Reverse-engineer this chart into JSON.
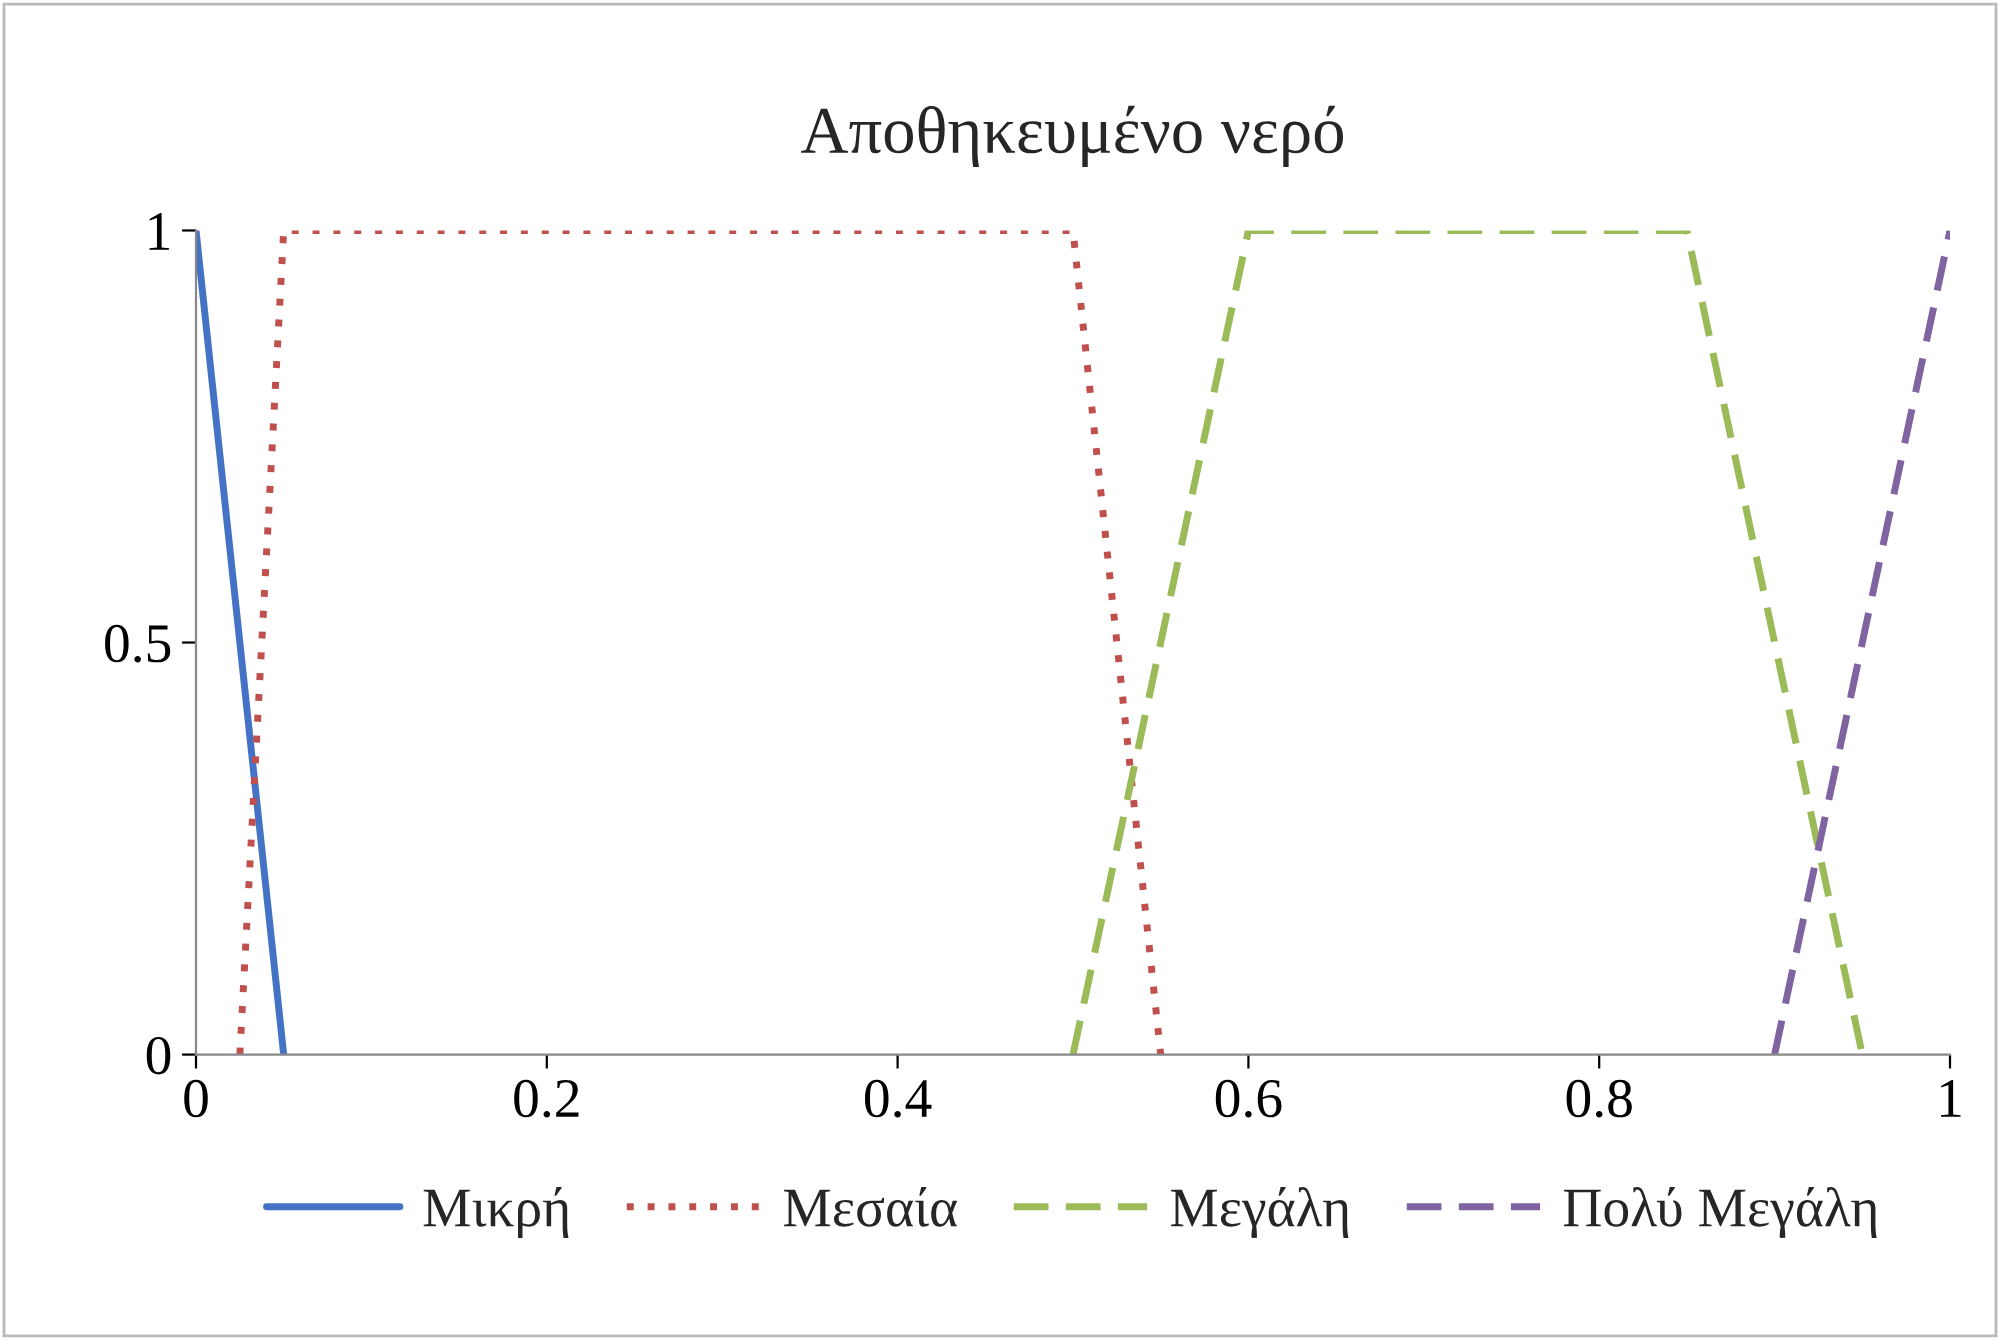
{
  "chart_data": {
    "type": "line",
    "title": "Αποθηκευμένο νερό",
    "series": [
      {
        "name": "Μικρή",
        "color": "#4472c4",
        "line_style": "solid",
        "x": [
          0,
          0.05
        ],
        "values": [
          1,
          0
        ]
      },
      {
        "name": "Μεσαία",
        "color": "#c0504d",
        "line_style": "dotted",
        "x": [
          0.025,
          0.05,
          0.5,
          0.55
        ],
        "values": [
          0,
          1,
          1,
          0
        ]
      },
      {
        "name": "Μεγάλη",
        "color": "#9bbb59",
        "line_style": "dashed",
        "x": [
          0.5,
          0.6,
          0.85,
          0.95
        ],
        "values": [
          0,
          1,
          1,
          0
        ]
      },
      {
        "name": "Πολύ Μεγάλη",
        "color": "#8064a2",
        "line_style": "dashed",
        "x": [
          0.9,
          1
        ],
        "values": [
          0,
          1
        ]
      }
    ],
    "xlim": [
      0,
      1
    ],
    "xticks": [
      0,
      0.2,
      0.4,
      0.6,
      0.8,
      1
    ],
    "ylim": [
      0,
      1
    ],
    "yticks": [
      0,
      0.5,
      1
    ],
    "grid": false,
    "legend": "bottom",
    "marker": "none"
  }
}
